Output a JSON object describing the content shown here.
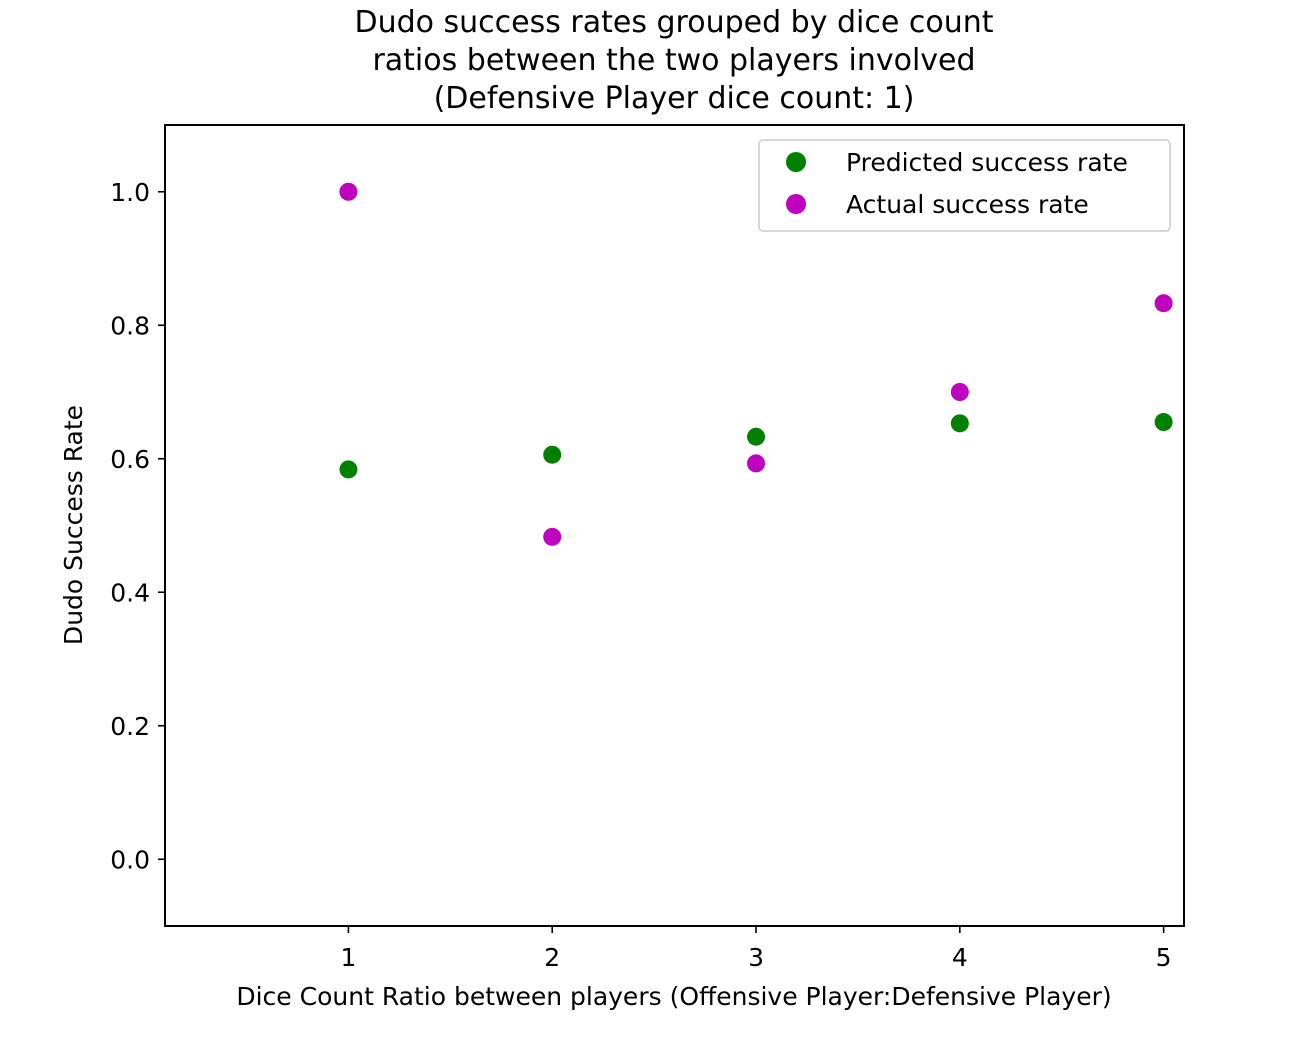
{
  "chart_data": {
    "type": "scatter",
    "title_lines": [
      "Dudo success rates grouped by dice count",
      "ratios between the two players involved",
      "(Defensive Player dice count: 1)"
    ],
    "xlabel": "Dice Count Ratio between players (Offensive Player:Defensive Player)",
    "ylabel": "Dudo Success Rate",
    "xlim": [
      0.1,
      5.1
    ],
    "ylim": [
      -0.1,
      1.1
    ],
    "x_ticks": [
      1,
      2,
      3,
      4,
      5
    ],
    "y_ticks": [
      0.0,
      0.2,
      0.4,
      0.6,
      0.8,
      1.0
    ],
    "y_tick_labels": [
      "0.0",
      "0.2",
      "0.4",
      "0.6",
      "0.8",
      "1.0"
    ],
    "grid": false,
    "legend_position": "top-right",
    "series": [
      {
        "name": "Predicted success rate",
        "color": "#008000",
        "points": [
          {
            "x": 1,
            "y": 0.584
          },
          {
            "x": 2,
            "y": 0.606
          },
          {
            "x": 3,
            "y": 0.633
          },
          {
            "x": 4,
            "y": 0.653
          },
          {
            "x": 5,
            "y": 0.655
          }
        ]
      },
      {
        "name": "Actual success rate",
        "color": "#bf00bf",
        "points": [
          {
            "x": 1,
            "y": 1.0
          },
          {
            "x": 2,
            "y": 0.483
          },
          {
            "x": 3,
            "y": 0.593
          },
          {
            "x": 4,
            "y": 0.7
          },
          {
            "x": 5,
            "y": 0.833
          }
        ]
      }
    ]
  }
}
